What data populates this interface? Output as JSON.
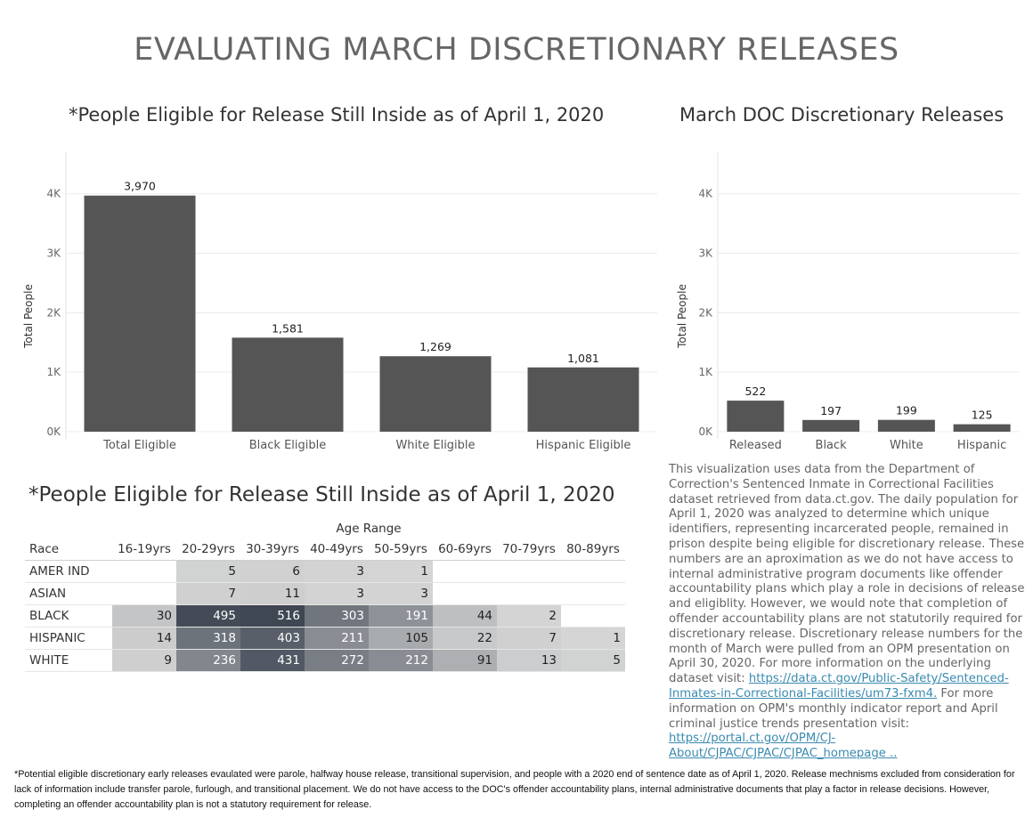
{
  "page": {
    "title": "EVALUATING MARCH DISCRETIONARY RELEASES"
  },
  "chart_data": [
    {
      "type": "bar",
      "title": "*People Eligible for Release Still Inside as of April 1, 2020",
      "ylabel": "Total People",
      "xlabel": "",
      "ylim": [
        0,
        4400
      ],
      "yticks": [
        0,
        1000,
        2000,
        3000,
        4000
      ],
      "ytick_labels": [
        "0K",
        "1K",
        "2K",
        "3K",
        "4K"
      ],
      "categories": [
        "Total Eligible",
        "Black Eligible",
        "White Eligible",
        "Hispanic Eligible"
      ],
      "values": [
        3970,
        1581,
        1269,
        1081
      ],
      "value_labels": [
        "3,970",
        "1,581",
        "1,269",
        "1,081"
      ],
      "grid": true,
      "color": "#555555"
    },
    {
      "type": "bar",
      "title": "March DOC Discretionary Releases",
      "ylabel": "Total People",
      "xlabel": "",
      "ylim": [
        0,
        4400
      ],
      "yticks": [
        0,
        1000,
        2000,
        3000,
        4000
      ],
      "ytick_labels": [
        "0K",
        "1K",
        "2K",
        "3K",
        "4K"
      ],
      "categories": [
        "Released",
        "Black",
        "White",
        "Hispanic"
      ],
      "values": [
        522,
        197,
        199,
        125
      ],
      "value_labels": [
        "522",
        "197",
        "199",
        "125"
      ],
      "grid": true,
      "color": "#555555"
    },
    {
      "type": "heatmap",
      "title": "*People Eligible for Release Still Inside as of April 1, 2020",
      "column_group_label": "Age Range",
      "row_header": "Race",
      "columns": [
        "16-19yrs",
        "20-29yrs",
        "30-39yrs",
        "40-49yrs",
        "50-59yrs",
        "60-69yrs",
        "70-79yrs",
        "80-89yrs"
      ],
      "rows": [
        {
          "label": "AMER IND",
          "values": [
            null,
            5,
            6,
            3,
            1,
            null,
            null,
            null
          ]
        },
        {
          "label": "ASIAN",
          "values": [
            null,
            7,
            11,
            3,
            3,
            null,
            null,
            null
          ]
        },
        {
          "label": "BLACK",
          "values": [
            30,
            495,
            516,
            303,
            191,
            44,
            2,
            null
          ]
        },
        {
          "label": "HISPANIC",
          "values": [
            14,
            318,
            403,
            211,
            105,
            22,
            7,
            1
          ]
        },
        {
          "label": "WHITE",
          "values": [
            9,
            236,
            431,
            272,
            212,
            91,
            13,
            5
          ]
        }
      ],
      "color_scale": [
        "#d6d6d6",
        "#3f4753"
      ]
    }
  ],
  "description": {
    "text_1": "This visualization uses data from the Department of Correction's Sentenced Inmate in Correctional Facilities dataset retrieved from data.ct.gov. The daily population for April 1, 2020 was analyzed to determine which unique identifiers, representing incarcerated people, remained in prison despite being eligible for discretionary release. These numbers are an aproximation as we do not have access to internal administrative program documents like offender accountability plans which play a role in decisions of release and eligiblity. However, we would note that completion of offender accountability plans are not statutorily required for discretionary release.  Discretionary release numbers for the month of March were pulled from an OPM presentation on April 30, 2020.  For more information on the underlying dataset visit: ",
    "link_1": "https://data.ct.gov/Public-Safety/Sentenced-Inmates-in-Correctional-Facilities/um73-fxm4.",
    "text_2": " For more information on OPM's monthly indicator report and April criminal justice trends presentation visit: ",
    "link_2": "https://portal.ct.gov/OPM/CJ-About/CJPAC/CJPAC/CJPAC_homepage ..",
    "link_color": "#3a8ab0"
  },
  "footnote": "*Potential eligible discretionary early releases evaulated were parole, halfway house release, transitional supervision, and people with a 2020 end of sentence date as of April 1, 2020. Release mechnisms excluded from consideration for lack of information include transfer parole, furlough, and transitional placement. We do not have access to the DOC's offender accountability plans, internal administrative documents that play a factor in release decisions. However, completing an offender accountability plan is not a statutory requirement for release."
}
